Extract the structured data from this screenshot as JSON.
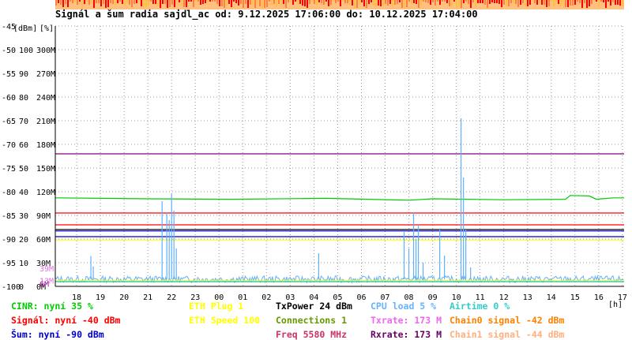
{
  "title": "Signál a šum radia sajdl_ac od: 9.12.2025 17:06:00 do: 10.12.2025 17:04:00",
  "chart_data": {
    "type": "line",
    "axis_units": {
      "dbm": "[dBm]",
      "percent": "[%]"
    },
    "x_unit": "[h]",
    "x_ticks": [
      "18",
      "19",
      "20",
      "21",
      "22",
      "23",
      "00",
      "01",
      "02",
      "03",
      "04",
      "05",
      "06",
      "07",
      "08",
      "09",
      "10",
      "11",
      "12",
      "13",
      "14",
      "15",
      "16",
      "17"
    ],
    "y_ticks": [
      {
        "dbm": "-45",
        "percent": "",
        "rate": ""
      },
      {
        "dbm": "-50",
        "percent": "100",
        "rate": "300M"
      },
      {
        "dbm": "-55",
        "percent": "90",
        "rate": "270M"
      },
      {
        "dbm": "-60",
        "percent": "80",
        "rate": "240M"
      },
      {
        "dbm": "-65",
        "percent": "70",
        "rate": "210M"
      },
      {
        "dbm": "-70",
        "percent": "60",
        "rate": "180M"
      },
      {
        "dbm": "-75",
        "percent": "50",
        "rate": "150M"
      },
      {
        "dbm": "-80",
        "percent": "40",
        "rate": "120M"
      },
      {
        "dbm": "-85",
        "percent": "30",
        "rate": "90M"
      },
      {
        "dbm": "-90",
        "percent": "20",
        "rate": "60M"
      },
      {
        "dbm": "-95",
        "percent": "10",
        "rate": "30M"
      },
      {
        "dbm": "-100",
        "percent": "0",
        "rate": "0M"
      }
    ],
    "extra_ticks": [
      {
        "label": "39M",
        "color": "#e070e0",
        "dbm": -96.17
      },
      {
        "label": "13M",
        "color": "#e070e0",
        "dbm": -98.75
      },
      {
        "label": "6M",
        "color": "#a020a0",
        "dbm": -99.4
      }
    ],
    "ylim_dbm": [
      -100,
      -45
    ],
    "xlim_hours": [
      17.1,
      41.07
    ],
    "series": [
      {
        "name": "Signál",
        "color": "#ff0000",
        "kind": "flat",
        "value": -87.0
      },
      {
        "name": "Šum",
        "color": "#0000cc",
        "kind": "flat",
        "value": -88.3
      },
      {
        "name": "TxPower",
        "color": "#000000",
        "kind": "flat",
        "value": -88.0
      },
      {
        "name": "Chain0 signal",
        "color": "#800080",
        "kind": "flat",
        "value": -72.0
      },
      {
        "name": "Rxrate",
        "color": "#ff0000",
        "kind": "flat",
        "value": -84.5
      },
      {
        "name": "CINR",
        "color": "#00cc00",
        "kind": "steps",
        "points": [
          [
            17.1,
            -81.3
          ],
          [
            21.0,
            -81.5
          ],
          [
            24.5,
            -81.6
          ],
          [
            28.5,
            -81.4
          ],
          [
            32.0,
            -81.8
          ],
          [
            33.0,
            -81.5
          ],
          [
            36.0,
            -81.7
          ],
          [
            38.6,
            -81.6
          ],
          [
            38.8,
            -80.8
          ],
          [
            39.6,
            -80.9
          ],
          [
            39.9,
            -81.6
          ],
          [
            40.6,
            -81.3
          ],
          [
            41.07,
            -81.3
          ]
        ]
      },
      {
        "name": "Šum",
        "color": "#0000cc",
        "kind": "flat",
        "value": -89.5
      },
      {
        "name": "Connections",
        "color": "#ffff00",
        "kind": "flat",
        "value": -90.2
      },
      {
        "name": "CPU load",
        "color": "#60b0ff",
        "kind": "spikes",
        "base": -98.5,
        "spikes": [
          [
            18.6,
            -93.6
          ],
          [
            18.7,
            -95.8
          ],
          [
            21.6,
            -82.0
          ],
          [
            21.8,
            -84.5
          ],
          [
            21.9,
            -86.0
          ],
          [
            22.0,
            -80.5
          ],
          [
            22.1,
            -84.0
          ],
          [
            22.2,
            -92.0
          ],
          [
            28.2,
            -93.0
          ],
          [
            31.8,
            -88.5
          ],
          [
            32.0,
            -92.0
          ],
          [
            32.2,
            -84.3
          ],
          [
            32.3,
            -90.0
          ],
          [
            32.4,
            -87.0
          ],
          [
            32.6,
            -95.0
          ],
          [
            33.3,
            -88.0
          ],
          [
            33.5,
            -93.5
          ],
          [
            34.2,
            -64.5
          ],
          [
            34.3,
            -77.0
          ],
          [
            34.4,
            -88.0
          ],
          [
            34.6,
            -96.0
          ]
        ]
      },
      {
        "name": "Txrate",
        "color": "#00c0c0",
        "kind": "flat",
        "value": -99.0
      },
      {
        "name": "Airtime",
        "color": "#ffff00",
        "kind": "flat",
        "value": -98.8
      }
    ],
    "top_band_colors": [
      "#ff0000",
      "#ff8040",
      "#ffc040"
    ],
    "grid": true
  },
  "legend": {
    "col1": [
      {
        "text": "CINR: nyní 35 %",
        "color": "#00cc00"
      },
      {
        "text": "Signál: nyní -40 dBm",
        "color": "#ff0000"
      },
      {
        "text": "Šum: nyní -90 dBm",
        "color": "#0000cc"
      }
    ],
    "col2": [
      {
        "text": "ETH Plug 1",
        "color": "#ffff00"
      },
      {
        "text": "ETH Speed 100",
        "color": "#ffff00"
      }
    ],
    "col3": [
      {
        "text": "TxPower 24 dBm",
        "color": "#000000"
      },
      {
        "text": "Connections 1",
        "color": "#669900"
      },
      {
        "text": "Freq 5580 MHz",
        "color": "#cc3366"
      }
    ],
    "col4": [
      {
        "text": "CPU load 5 %",
        "color": "#66b3ff"
      },
      {
        "text": "Txrate: 173 M",
        "color": "#ee66ee"
      },
      {
        "text": "Rxrate: 173 M",
        "color": "#660066"
      }
    ],
    "col5": [
      {
        "text": "Airtime 0 %",
        "color": "#33cccc"
      },
      {
        "text": "Chain0 signal -42 dBm",
        "color": "#ff8000"
      },
      {
        "text": "Chain1 signal -44 dBm",
        "color": "#ffb080"
      }
    ]
  }
}
